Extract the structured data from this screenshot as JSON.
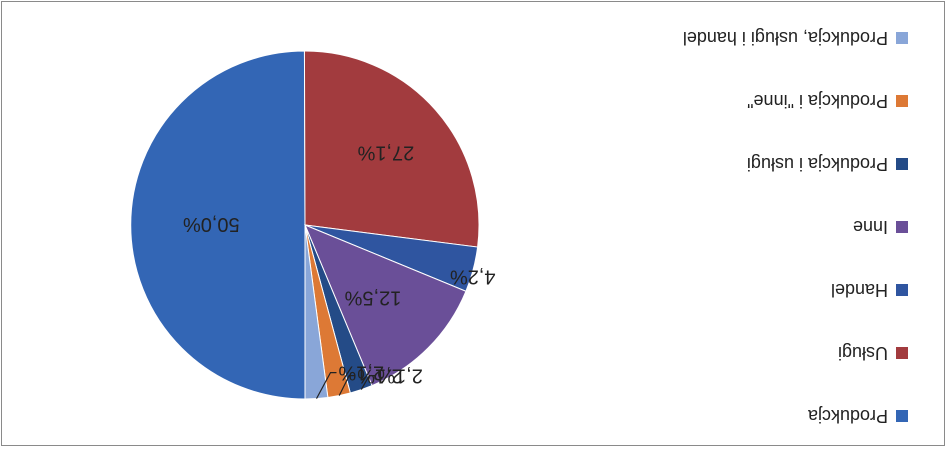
{
  "chart_data": {
    "type": "pie",
    "orientation": "rotated 180 degrees",
    "title": "",
    "legend_position": "right",
    "slices": [
      {
        "name": "Produkcja",
        "value": 50.0,
        "label": "50,0%",
        "color": "#3366b5"
      },
      {
        "name": "Usługi",
        "value": 27.1,
        "label": "27,1%",
        "color": "#a23b3e"
      },
      {
        "name": "Handel",
        "value": 4.2,
        "label": "4,2%",
        "color": "#2f55a0"
      },
      {
        "name": "Inne",
        "value": 12.5,
        "label": "12,5%",
        "color": "#6a4f98"
      },
      {
        "name": "Produkcja i usługi",
        "value": 2.1,
        "label": "2,1%",
        "color": "#244b87"
      },
      {
        "name": "Produkcja i \"inne\"",
        "value": 2.1,
        "label": "2,1%",
        "color": "#dd7935"
      },
      {
        "name": "Produkcja, usługi i handel",
        "value": 2.1,
        "label": "2,1%",
        "color": "#89a6d8"
      }
    ]
  }
}
